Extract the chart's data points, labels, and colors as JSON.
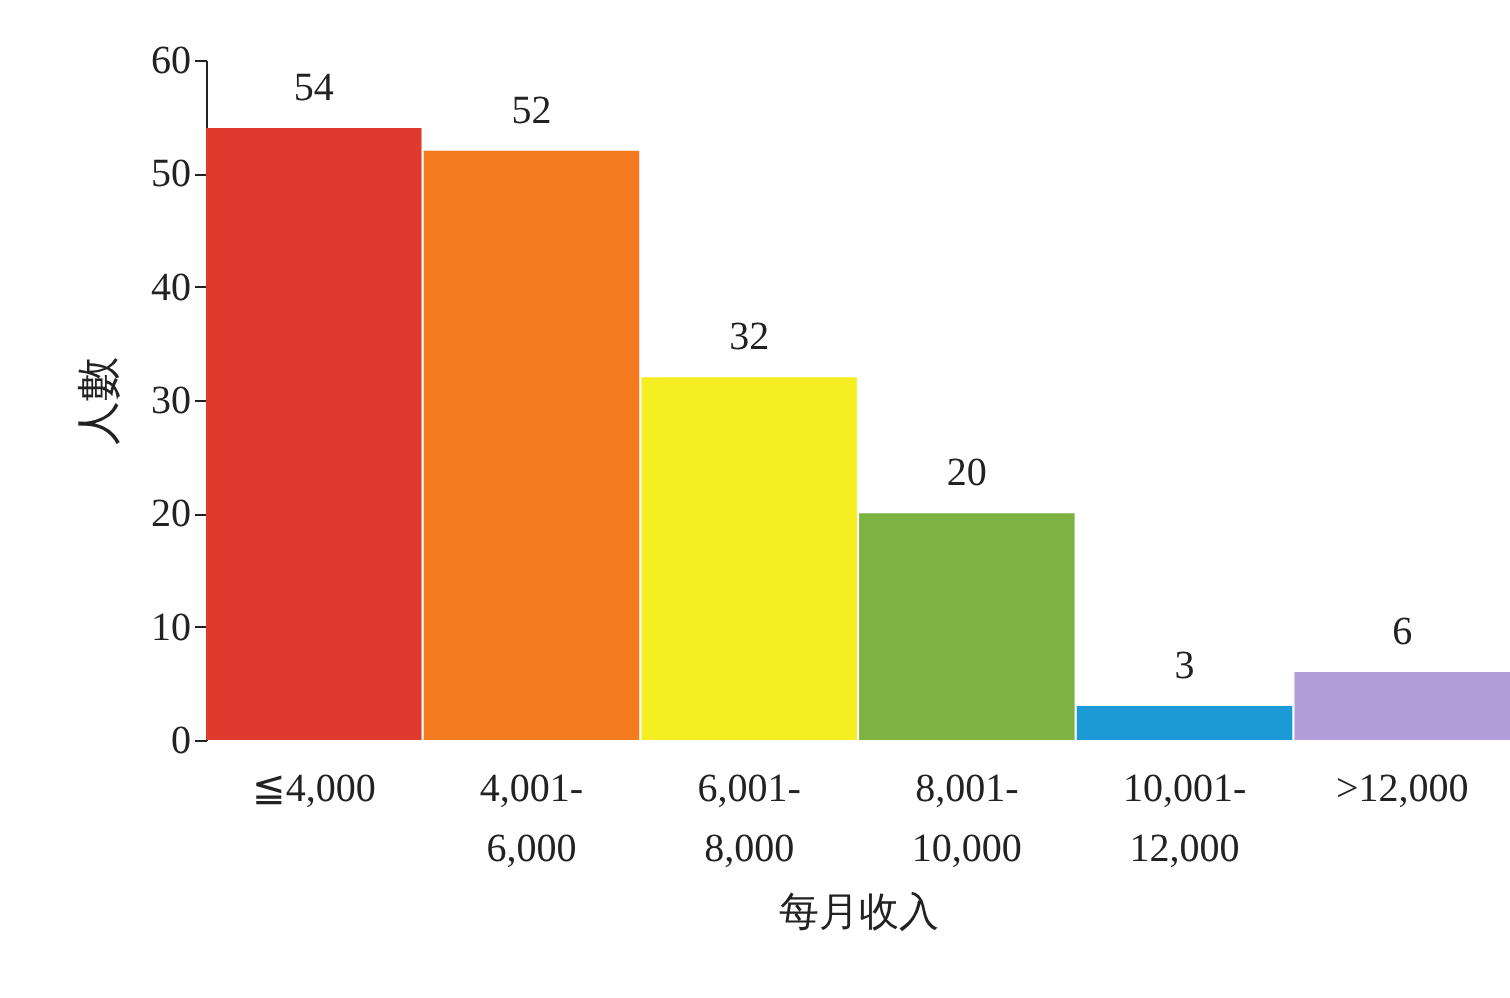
{
  "chart_data": {
    "type": "bar",
    "xlabel": "每月收入",
    "ylabel": "人數",
    "categories": [
      "≦4,000",
      "4,001-6,000",
      "6,001-8,000",
      "8,001-10,000",
      "10,001-12,000",
      ">12,000"
    ],
    "values": [
      54,
      52,
      32,
      20,
      3,
      6
    ],
    "colors": [
      "#e03a2f",
      "#f47b20",
      "#f5ee22",
      "#7cb342",
      "#1c9ad6",
      "#b39ddb"
    ],
    "ylim": [
      0,
      60
    ],
    "yticks": [
      0,
      10,
      20,
      30,
      40,
      50,
      60
    ],
    "grid": false,
    "legend": false,
    "data_labels": true
  }
}
